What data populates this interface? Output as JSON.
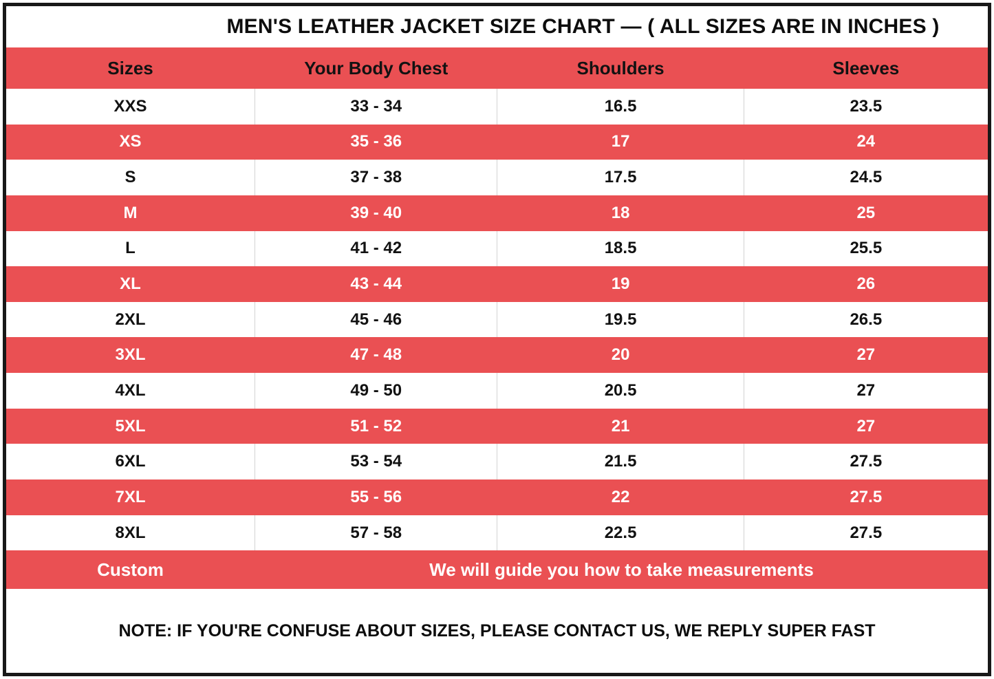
{
  "title": "MEN'S LEATHER JACKET SIZE CHART — ( ALL SIZES ARE IN INCHES )",
  "colors": {
    "accent_red": "#EA5053",
    "row_white": "#FFFFFF",
    "outer_border_black": "#181818",
    "divider_gray": "#D2D2D2",
    "text_dark": "#121212",
    "text_light": "#FFFFFF"
  },
  "table": {
    "headers": [
      "Sizes",
      "Your Body Chest",
      "Shoulders",
      "Sleeves"
    ],
    "rows": [
      {
        "size": "XXS",
        "chest": "33 - 34",
        "shoulders": "16.5",
        "sleeves": "23.5"
      },
      {
        "size": "XS",
        "chest": "35 - 36",
        "shoulders": "17",
        "sleeves": "24"
      },
      {
        "size": "S",
        "chest": "37 - 38",
        "shoulders": "17.5",
        "sleeves": "24.5"
      },
      {
        "size": "M",
        "chest": "39 - 40",
        "shoulders": "18",
        "sleeves": "25"
      },
      {
        "size": "L",
        "chest": "41 - 42",
        "shoulders": "18.5",
        "sleeves": "25.5"
      },
      {
        "size": "XL",
        "chest": "43 - 44",
        "shoulders": "19",
        "sleeves": "26"
      },
      {
        "size": "2XL",
        "chest": "45 - 46",
        "shoulders": "19.5",
        "sleeves": "26.5"
      },
      {
        "size": "3XL",
        "chest": "47 - 48",
        "shoulders": "20",
        "sleeves": "27"
      },
      {
        "size": "4XL",
        "chest": "49 - 50",
        "shoulders": "20.5",
        "sleeves": "27"
      },
      {
        "size": "5XL",
        "chest": "51 - 52",
        "shoulders": "21",
        "sleeves": "27"
      },
      {
        "size": "6XL",
        "chest": "53 - 54",
        "shoulders": "21.5",
        "sleeves": "27.5"
      },
      {
        "size": "7XL",
        "chest": "55 - 56",
        "shoulders": "22",
        "sleeves": "27.5"
      },
      {
        "size": "8XL",
        "chest": "57 - 58",
        "shoulders": "22.5",
        "sleeves": "27.5"
      }
    ],
    "custom_row": {
      "label": "Custom",
      "message": "We will guide you how to take measurements"
    },
    "note": "NOTE: IF YOU'RE CONFUSE ABOUT SIZES, PLEASE CONTACT US, WE REPLY SUPER FAST"
  },
  "chart_data": {
    "type": "table",
    "title": "MEN'S LEATHER JACKET SIZE CHART — ( ALL SIZES ARE IN INCHES )",
    "columns": [
      "Sizes",
      "Your Body Chest",
      "Shoulders",
      "Sleeves"
    ],
    "units": "inches",
    "rows": [
      [
        "XXS",
        "33 - 34",
        16.5,
        23.5
      ],
      [
        "XS",
        "35 - 36",
        17,
        24
      ],
      [
        "S",
        "37 - 38",
        17.5,
        24.5
      ],
      [
        "M",
        "39 - 40",
        18,
        25
      ],
      [
        "L",
        "41 - 42",
        18.5,
        25.5
      ],
      [
        "XL",
        "43 - 44",
        19,
        26
      ],
      [
        "2XL",
        "45 - 46",
        19.5,
        26.5
      ],
      [
        "3XL",
        "47 - 48",
        20,
        27
      ],
      [
        "4XL",
        "49 - 50",
        20.5,
        27
      ],
      [
        "5XL",
        "51 - 52",
        21,
        27
      ],
      [
        "6XL",
        "53 - 54",
        21.5,
        27.5
      ],
      [
        "7XL",
        "55 - 56",
        22,
        27.5
      ],
      [
        "8XL",
        "57 - 58",
        22.5,
        27.5
      ]
    ],
    "footer_rows": [
      [
        "Custom",
        "We will guide you how to take measurements"
      ]
    ],
    "annotations": [
      "NOTE: IF YOU'RE CONFUSE ABOUT SIZES, PLEASE CONTACT US, WE REPLY SUPER FAST"
    ],
    "layout_hints": {
      "striped": true,
      "stripe_colors": [
        "#FFFFFF",
        "#EA5053"
      ],
      "header_color": "#EA5053"
    }
  }
}
